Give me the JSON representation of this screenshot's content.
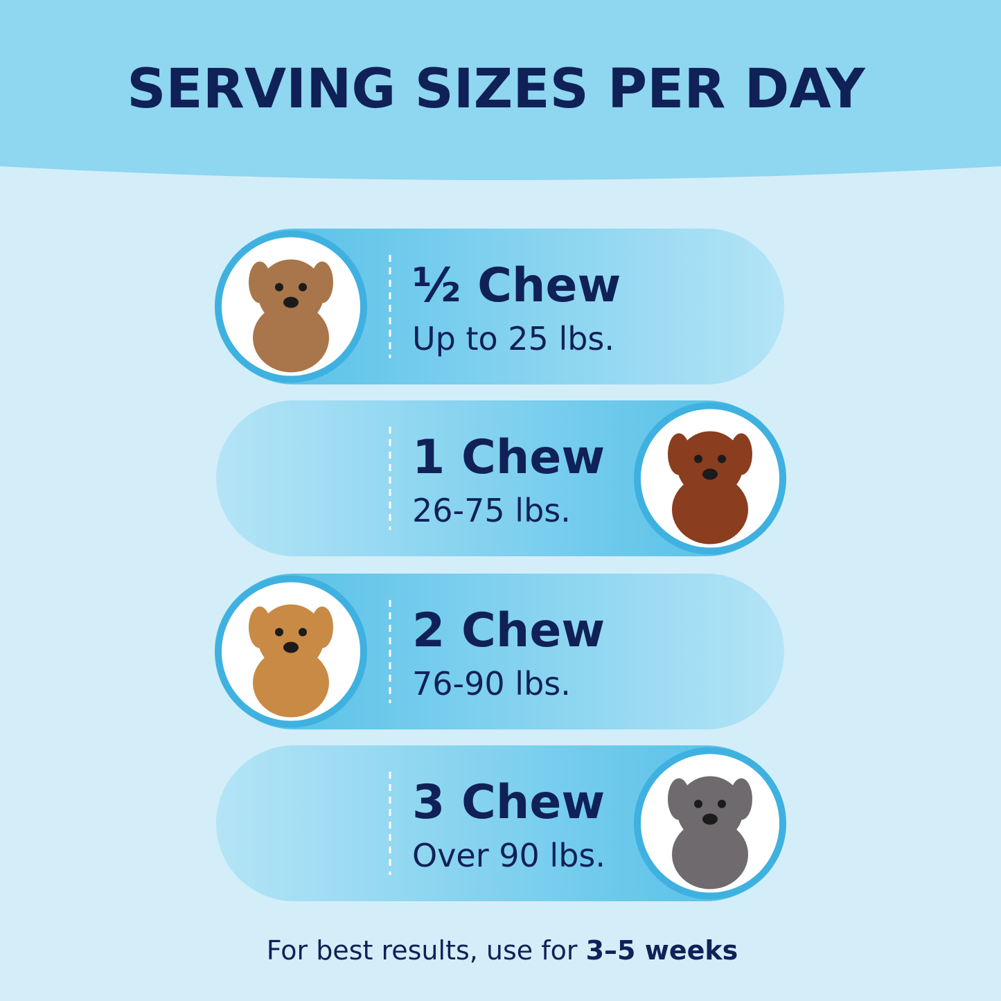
{
  "header": {
    "title": "SERVING SIZES PER DAY"
  },
  "rows": [
    {
      "amount": "½ Chew",
      "weight": "Up to 25 lbs."
    },
    {
      "amount": "1 Chew",
      "weight": "26-75 lbs."
    },
    {
      "amount": "2 Chew",
      "weight": "76-90 lbs."
    },
    {
      "amount": "3 Chew",
      "weight": "Over 90 lbs."
    }
  ],
  "footer": {
    "text": "For best results, use for ",
    "emphasis": "3–5 weeks"
  }
}
